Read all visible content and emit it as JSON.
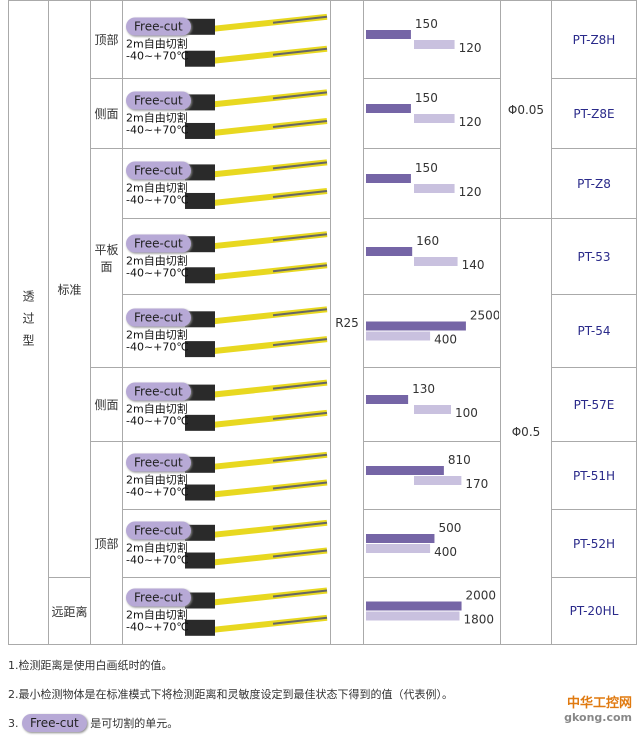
{
  "table": {
    "type_label": "透过型",
    "groups": [
      "标准",
      "远距离"
    ],
    "orientations": [
      "顶部",
      "侧面",
      "平板面",
      "侧面",
      "顶部"
    ],
    "bend_radius": "R25",
    "min_object": [
      "Φ0.05",
      "Φ0.5"
    ],
    "caption": {
      "badge": "Free-cut",
      "cable": "2m自由切割",
      "temp": "-40~+70℃"
    },
    "rows": [
      {
        "distance": [
          150,
          120
        ],
        "model": "PT-Z8H"
      },
      {
        "distance": [
          150,
          120
        ],
        "model": "PT-Z8E"
      },
      {
        "distance": [
          150,
          120
        ],
        "model": "PT-Z8"
      },
      {
        "distance": [
          160,
          140
        ],
        "model": "PT-53"
      },
      {
        "distance": [
          2500,
          400
        ],
        "model": "PT-54"
      },
      {
        "distance": [
          130,
          100
        ],
        "model": "PT-57E"
      },
      {
        "distance": [
          810,
          170
        ],
        "model": "PT-51H"
      },
      {
        "distance": [
          500,
          400
        ],
        "model": "PT-52H"
      },
      {
        "distance": [
          2000,
          1800
        ],
        "model": "PT-20HL"
      }
    ]
  },
  "notes": [
    "1.检测距离是使用白画纸时的值。",
    "2.最小检测物体是在标准模式下将检测距离和灵敏度设定到最佳状态下得到的值（代表例）。"
  ],
  "note3": {
    "prefix": "3.",
    "badge": "Free-cut",
    "text": "是可切割的单元。"
  },
  "watermark": {
    "cn": "中华工控网",
    "url": "gkong.com"
  }
}
